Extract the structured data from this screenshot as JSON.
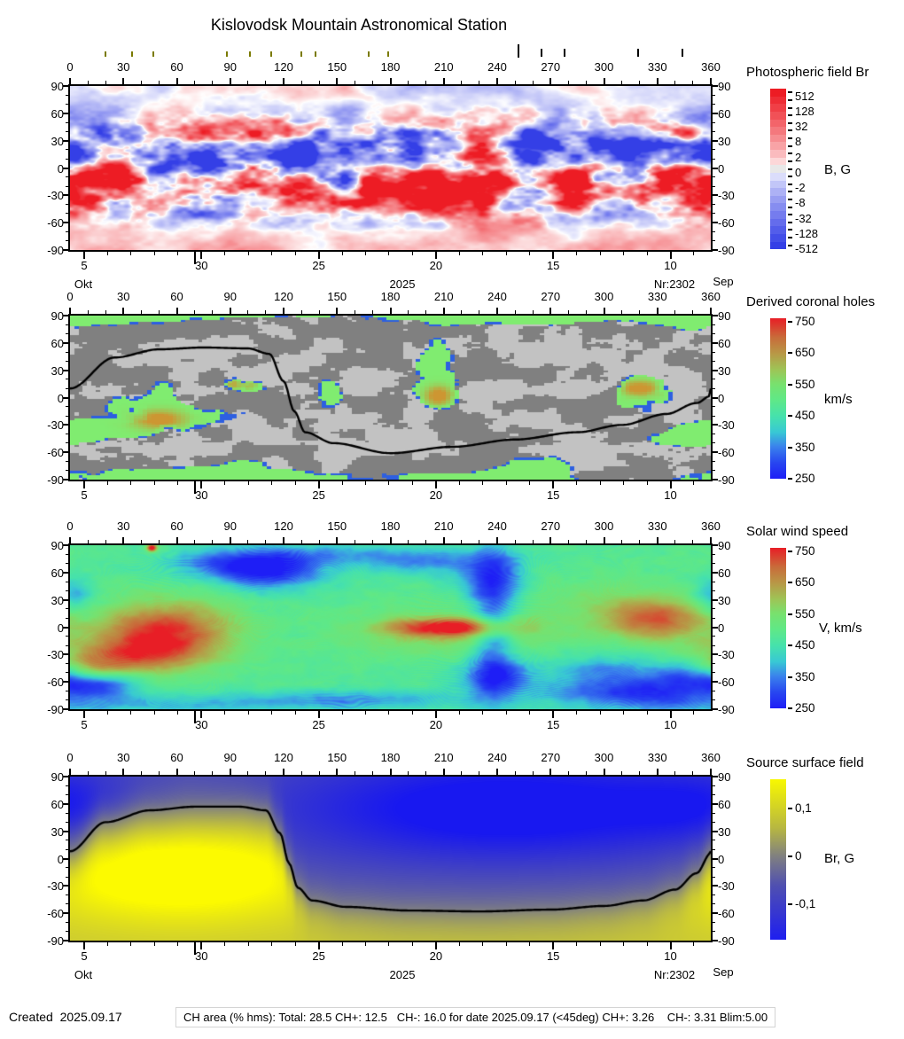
{
  "title": "Kislovodsk Mountain Astronomical Station",
  "footer": {
    "created": "Created  2025.09.17",
    "ch_area": "CH area (% hms): Total: 28.5 CH+: 12.5   CH-: 16.0 for date 2025.09.17 (<45deg) CH+: 3.26    CH-: 3.31 Blim:5.00"
  },
  "axes": {
    "lon_ticks": [
      "0",
      "30",
      "60",
      "90",
      "120",
      "150",
      "180",
      "210",
      "240",
      "270",
      "300",
      "330",
      "360"
    ],
    "lat_ticks": [
      "90",
      "60",
      "30",
      "0",
      "-30",
      "-60",
      "-90"
    ],
    "date_ticks": [
      "5",
      "30",
      "25",
      "20",
      "15",
      "10"
    ],
    "month_left": "Okt",
    "year": "2025",
    "rotation_label": "Nr:2302",
    "month_right": "Sep"
  },
  "panels": [
    {
      "id": "photospheric",
      "title": "Photospheric field Br",
      "unit": "B, G",
      "colorbar_ticks": [
        "512",
        "128",
        "32",
        "8",
        "2",
        "0",
        "-2",
        "-8",
        "-32",
        "-128",
        "-512"
      ],
      "colors": {
        "positive": "#ed1c24",
        "zero": "#e8e8e8",
        "negative": "#343fe6"
      }
    },
    {
      "id": "coronal-holes",
      "title": "Derived coronal holes",
      "unit": "km/s",
      "colorbar_ticks": [
        "750",
        "650",
        "550",
        "450",
        "350",
        "250"
      ],
      "colors": {
        "quiet_light": "#c2c2c2",
        "quiet_dark": "#808080",
        "ch_green": "#80ec70",
        "ch_border": "#2d5fe1",
        "neutral_line": "#000000"
      }
    },
    {
      "id": "wind-speed",
      "title": "Solar wind speed",
      "unit": "V, km/s",
      "colorbar_ticks": [
        "750",
        "650",
        "550",
        "450",
        "350",
        "250"
      ],
      "colors": {
        "base_green": "#5fe08c"
      }
    },
    {
      "id": "source-surface",
      "title": "Source surface field",
      "unit": "Br, G",
      "colorbar_ticks": [
        "0,1",
        "0",
        "-0,1"
      ],
      "colors": {
        "positive": "#fafa00",
        "zero": "#808080",
        "negative": "#1818f0",
        "neutral_line": "#000000"
      }
    }
  ],
  "chart_data": [
    {
      "panel": "Photospheric field Br",
      "type": "heatmap",
      "x_range": [
        0,
        360
      ],
      "y_range": [
        -90,
        90
      ],
      "x_ticks": [
        0,
        30,
        60,
        90,
        120,
        150,
        180,
        210,
        240,
        270,
        300,
        330,
        360
      ],
      "y_ticks": [
        90,
        60,
        30,
        0,
        -30,
        -60,
        -90
      ],
      "colorbar": {
        "unit": "B, G",
        "scale": "symlog",
        "ticks": [
          512,
          128,
          32,
          8,
          2,
          0,
          -2,
          -8,
          -32,
          -128,
          -512
        ]
      },
      "bottom_axis": {
        "dates": [
          5,
          30,
          25,
          20,
          15,
          10
        ],
        "month_left": "Okt",
        "month_right": "Sep",
        "year": "2025",
        "carrington": "Nr:2302"
      },
      "pattern": {
        "positive_band_lat": -25,
        "negative_band_lat": 20,
        "north_pole": "weak negative (pale blue)",
        "south_pole": "weak positive (pale pink)"
      },
      "activity_markers_lon_deg": {
        "olive": [
          20,
          35,
          47,
          88,
          101,
          113,
          130,
          138,
          168,
          179
        ],
        "black": [
          252,
          265,
          278,
          319,
          344
        ]
      }
    },
    {
      "panel": "Derived coronal holes",
      "type": "heatmap",
      "x_range": [
        0,
        360
      ],
      "y_range": [
        -90,
        90
      ],
      "colorbar": {
        "unit": "km/s",
        "ticks": [
          750,
          650,
          550,
          450,
          350,
          250
        ]
      },
      "ch_regions": [
        [
          62,
          -8,
          30,
          22,
          1.15
        ],
        [
          76,
          2,
          12,
          9,
          -1.6
        ],
        [
          95,
          16,
          10,
          8,
          0.8
        ],
        [
          15,
          -36,
          22,
          7,
          0.95
        ],
        [
          50,
          -22,
          14,
          10,
          0.5
        ],
        [
          75,
          -88,
          70,
          8,
          1.3
        ],
        [
          100,
          -78,
          14,
          9,
          0.8
        ],
        [
          262,
          -79,
          18,
          13,
          1.0
        ],
        [
          222,
          -89,
          28,
          5,
          1.0
        ],
        [
          28,
          90,
          36,
          7,
          1.2
        ],
        [
          252,
          90,
          62,
          7,
          1.3
        ],
        [
          352,
          85,
          16,
          9,
          1.0
        ],
        [
          90,
          92,
          40,
          4,
          0.9
        ],
        [
          205,
          25,
          9,
          32,
          1.0
        ],
        [
          207,
          3,
          8,
          10,
          0.6
        ],
        [
          145,
          2,
          7,
          14,
          0.9
        ],
        [
          322,
          14,
          13,
          9,
          0.95
        ],
        [
          318,
          -8,
          10,
          12,
          0.8
        ],
        [
          333,
          3,
          7,
          7,
          0.6
        ],
        [
          358,
          -38,
          14,
          9,
          0.9
        ],
        [
          345,
          -45,
          18,
          6,
          0.8
        ]
      ],
      "warm_cores": [
        [
          95,
          16,
          8,
          6,
          0.9
        ],
        [
          50,
          -24,
          10,
          7,
          0.85
        ],
        [
          207,
          2,
          5,
          7,
          0.9
        ],
        [
          320,
          10,
          8,
          6,
          0.8
        ]
      ],
      "neutral_line": [
        [
          0,
          10
        ],
        [
          25,
          44
        ],
        [
          50,
          53
        ],
        [
          75,
          55
        ],
        [
          100,
          54
        ],
        [
          112,
          48
        ],
        [
          120,
          18
        ],
        [
          126,
          -15
        ],
        [
          132,
          -38
        ],
        [
          148,
          -50
        ],
        [
          180,
          -61
        ],
        [
          215,
          -54
        ],
        [
          250,
          -46
        ],
        [
          285,
          -38
        ],
        [
          310,
          -30
        ],
        [
          335,
          -18
        ],
        [
          352,
          -6
        ],
        [
          360,
          2
        ]
      ]
    },
    {
      "panel": "Solar wind speed",
      "type": "heatmap",
      "x_range": [
        0,
        360
      ],
      "y_range": [
        -90,
        90
      ],
      "colorbar": {
        "unit": "V, km/s",
        "ticks": [
          750,
          650,
          550,
          450,
          350,
          250
        ]
      },
      "base_speed_kms": 485,
      "high_speed_features": [
        [
          55,
          -2,
          26,
          22,
          235
        ],
        [
          36,
          -30,
          28,
          16,
          185
        ],
        [
          8,
          -45,
          16,
          10,
          120
        ],
        [
          215,
          0,
          24,
          7,
          250
        ],
        [
          213,
          -6,
          40,
          18,
          90
        ],
        [
          330,
          8,
          20,
          16,
          205
        ],
        [
          300,
          25,
          30,
          20,
          60
        ],
        [
          46,
          87,
          2,
          3,
          320
        ]
      ],
      "low_speed_features": [
        [
          112,
          60,
          22,
          14,
          190
        ],
        [
          88,
          70,
          26,
          12,
          120
        ],
        [
          150,
          80,
          40,
          9,
          100
        ],
        [
          238,
          -2,
          9,
          60,
          170
        ],
        [
          237,
          55,
          14,
          18,
          120
        ],
        [
          240,
          -55,
          16,
          14,
          130
        ],
        [
          320,
          -72,
          36,
          14,
          200
        ],
        [
          352,
          -50,
          16,
          12,
          150
        ],
        [
          18,
          -62,
          16,
          10,
          140
        ],
        [
          2,
          35,
          8,
          14,
          120
        ],
        [
          60,
          -85,
          50,
          8,
          90
        ],
        [
          160,
          -80,
          45,
          8,
          110
        ],
        [
          202,
          70,
          25,
          10,
          100
        ],
        [
          300,
          -45,
          20,
          12,
          90
        ]
      ]
    },
    {
      "panel": "Source surface field",
      "type": "heatmap",
      "x_range": [
        0,
        360
      ],
      "y_range": [
        -90,
        90
      ],
      "colorbar": {
        "unit": "Br, G",
        "ticks": [
          "0,1",
          "0",
          "-0,1"
        ]
      },
      "positive_blob": {
        "lon": 62,
        "lat": -15
      },
      "negative_blob": {
        "lon": 245,
        "lat": 55
      },
      "neutral_line": [
        [
          0,
          8
        ],
        [
          20,
          40
        ],
        [
          45,
          53
        ],
        [
          70,
          57
        ],
        [
          95,
          57
        ],
        [
          110,
          53
        ],
        [
          118,
          28
        ],
        [
          123,
          -5
        ],
        [
          128,
          -32
        ],
        [
          136,
          -46
        ],
        [
          155,
          -53
        ],
        [
          190,
          -57
        ],
        [
          230,
          -58
        ],
        [
          270,
          -56
        ],
        [
          300,
          -52
        ],
        [
          322,
          -46
        ],
        [
          340,
          -34
        ],
        [
          352,
          -16
        ],
        [
          360,
          6
        ]
      ]
    }
  ]
}
